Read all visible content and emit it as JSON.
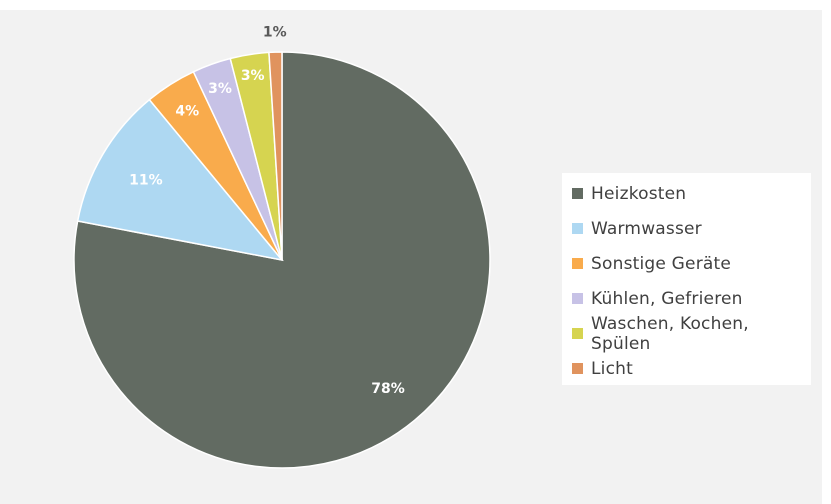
{
  "chart_data": {
    "type": "pie",
    "categories": [
      "Heizkosten",
      "Warmwasser",
      "Sonstige Geräte",
      "Kühlen, Gefrieren",
      "Waschen, Kochen, Spülen",
      "Licht"
    ],
    "values": [
      78,
      11,
      4,
      3,
      3,
      1
    ],
    "labels": [
      "78%",
      "11%",
      "4%",
      "3%",
      "3%",
      "1%"
    ],
    "colors": [
      "#626b62",
      "#aed8f2",
      "#f9ab4c",
      "#c7c2e6",
      "#d6d450",
      "#e0935e"
    ],
    "label_colors": [
      "#ffffff",
      "#ffffff",
      "#ffffff",
      "#ffffff",
      "#ffffff",
      "#595959"
    ],
    "legend_position": "right",
    "title": ""
  }
}
